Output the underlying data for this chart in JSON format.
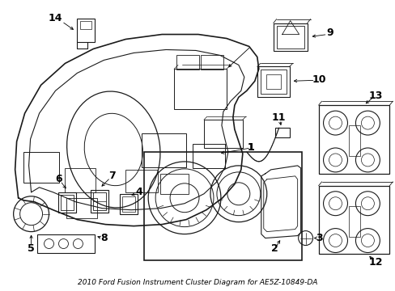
{
  "bg_color": "#ffffff",
  "line_color": "#1a1a1a",
  "title": "2010 Ford Fusion Instrument Cluster Diagram for AE5Z-10849-DA",
  "font_size_labels": 9,
  "font_size_title": 6.5
}
